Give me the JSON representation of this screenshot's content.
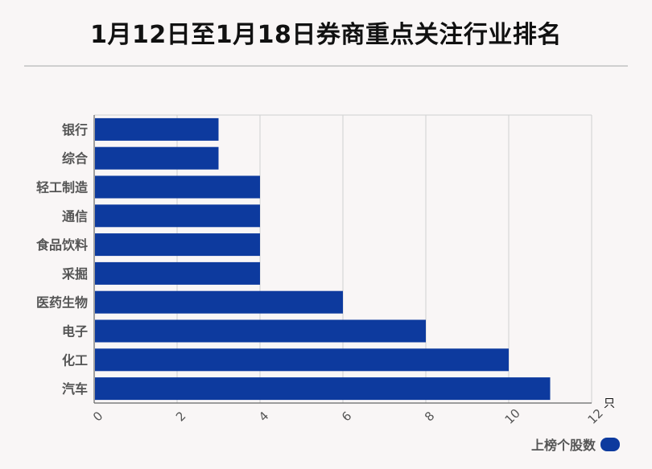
{
  "title": "1月12日至1月18日券商重点关注行业排名",
  "chart_data": {
    "type": "bar",
    "orientation": "horizontal",
    "title": "1月12日至1月18日券商重点关注行业排名",
    "categories": [
      "银行",
      "综合",
      "轻工制造",
      "通信",
      "食品饮料",
      "采掘",
      "医药生物",
      "电子",
      "化工",
      "汽车"
    ],
    "series": [
      {
        "name": "上榜个股数",
        "values": [
          3,
          3,
          4,
          4,
          4,
          4,
          6,
          8,
          10,
          11
        ]
      }
    ],
    "xlim": [
      0,
      12
    ],
    "xticks": [
      "0",
      "2",
      "4",
      "6",
      "8",
      "10",
      "12"
    ],
    "x_unit": "只",
    "grid": true,
    "legend_position": "bottom-right",
    "bar_color": "#0d3a9e"
  }
}
